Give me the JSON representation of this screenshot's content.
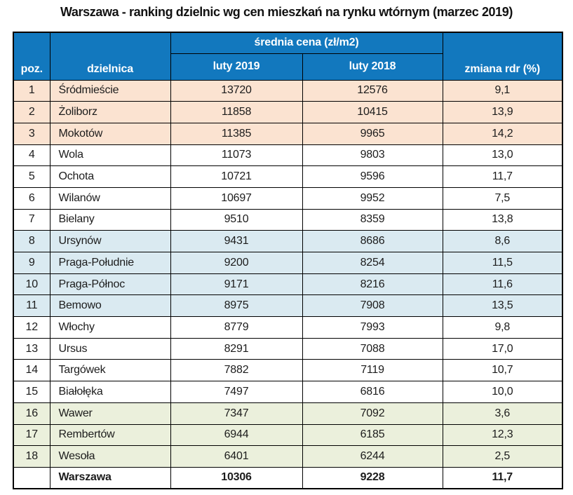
{
  "page": {
    "title": "Warszawa - ranking dzielnic wg cen mieszkań na rynku wtórnym (marzec 2019)"
  },
  "colors": {
    "header_blue": "#1278be",
    "band_peach": "#fbe3d1",
    "band_blue": "#daeaf1",
    "band_green": "#ebf0dc",
    "border_black": "#000000",
    "header_text": "#ffffff",
    "body_text": "#1c1c1c"
  },
  "table": {
    "headers": {
      "poz": "poz.",
      "dzielnica": "dzielnica",
      "group": "średnia cena (zł/m2)",
      "col2019": "luty 2019",
      "col2018": "luty 2018",
      "zmiana": "zmiana rdr (%)"
    },
    "rows": [
      {
        "poz": "1",
        "dzielnica": "Śródmieście",
        "luty2019": "13720",
        "luty2018": "12576",
        "zmiana": "9,1",
        "band": "peach"
      },
      {
        "poz": "2",
        "dzielnica": "Żoliborz",
        "luty2019": "11858",
        "luty2018": "10415",
        "zmiana": "13,9",
        "band": "peach"
      },
      {
        "poz": "3",
        "dzielnica": "Mokotów",
        "luty2019": "11385",
        "luty2018": "9965",
        "zmiana": "14,2",
        "band": "peach"
      },
      {
        "poz": "4",
        "dzielnica": "Wola",
        "luty2019": "11073",
        "luty2018": "9803",
        "zmiana": "13,0",
        "band": "white"
      },
      {
        "poz": "5",
        "dzielnica": "Ochota",
        "luty2019": "10721",
        "luty2018": "9596",
        "zmiana": "11,7",
        "band": "white"
      },
      {
        "poz": "6",
        "dzielnica": "Wilanów",
        "luty2019": "10697",
        "luty2018": "9952",
        "zmiana": "7,5",
        "band": "white"
      },
      {
        "poz": "7",
        "dzielnica": "Bielany",
        "luty2019": "9510",
        "luty2018": "8359",
        "zmiana": "13,8",
        "band": "white"
      },
      {
        "poz": "8",
        "dzielnica": "Ursynów",
        "luty2019": "9431",
        "luty2018": "8686",
        "zmiana": "8,6",
        "band": "blue"
      },
      {
        "poz": "9",
        "dzielnica": "Praga-Południe",
        "luty2019": "9200",
        "luty2018": "8254",
        "zmiana": "11,5",
        "band": "blue"
      },
      {
        "poz": "10",
        "dzielnica": "Praga-Północ",
        "luty2019": "9171",
        "luty2018": "8216",
        "zmiana": "11,6",
        "band": "blue"
      },
      {
        "poz": "11",
        "dzielnica": "Bemowo",
        "luty2019": "8975",
        "luty2018": "7908",
        "zmiana": "13,5",
        "band": "blue"
      },
      {
        "poz": "12",
        "dzielnica": "Włochy",
        "luty2019": "8779",
        "luty2018": "7993",
        "zmiana": "9,8",
        "band": "white"
      },
      {
        "poz": "13",
        "dzielnica": "Ursus",
        "luty2019": "8291",
        "luty2018": "7088",
        "zmiana": "17,0",
        "band": "white"
      },
      {
        "poz": "14",
        "dzielnica": "Targówek",
        "luty2019": "7882",
        "luty2018": "7119",
        "zmiana": "10,7",
        "band": "white"
      },
      {
        "poz": "15",
        "dzielnica": "Białołęka",
        "luty2019": "7497",
        "luty2018": "6816",
        "zmiana": "10,0",
        "band": "white"
      },
      {
        "poz": "16",
        "dzielnica": "Wawer",
        "luty2019": "7347",
        "luty2018": "7092",
        "zmiana": "3,6",
        "band": "green"
      },
      {
        "poz": "17",
        "dzielnica": "Rembertów",
        "luty2019": "6944",
        "luty2018": "6185",
        "zmiana": "12,3",
        "band": "green"
      },
      {
        "poz": "18",
        "dzielnica": "Wesoła",
        "luty2019": "6401",
        "luty2018": "6244",
        "zmiana": "2,5",
        "band": "green"
      },
      {
        "poz": "",
        "dzielnica": "Warszawa",
        "luty2019": "10306",
        "luty2018": "9228",
        "zmiana": "11,7",
        "band": "total"
      }
    ]
  },
  "chart_data": {
    "type": "table",
    "title": "Warszawa - ranking dzielnic wg cen mieszkań na rynku wtórnym (marzec 2019)",
    "columns": [
      "poz.",
      "dzielnica",
      "luty 2019",
      "luty 2018",
      "zmiana rdr (%)"
    ],
    "column_group": {
      "label": "średnia cena (zł/m2)",
      "covers": [
        "luty 2019",
        "luty 2018"
      ]
    },
    "rows": [
      [
        1,
        "Śródmieście",
        13720,
        12576,
        9.1
      ],
      [
        2,
        "Żoliborz",
        11858,
        10415,
        13.9
      ],
      [
        3,
        "Mokotów",
        11385,
        9965,
        14.2
      ],
      [
        4,
        "Wola",
        11073,
        9803,
        13.0
      ],
      [
        5,
        "Ochota",
        10721,
        9596,
        11.7
      ],
      [
        6,
        "Wilanów",
        10697,
        9952,
        7.5
      ],
      [
        7,
        "Bielany",
        9510,
        8359,
        13.8
      ],
      [
        8,
        "Ursynów",
        9431,
        8686,
        8.6
      ],
      [
        9,
        "Praga-Południe",
        9200,
        8254,
        11.5
      ],
      [
        10,
        "Praga-Północ",
        9171,
        8216,
        11.6
      ],
      [
        11,
        "Bemowo",
        8975,
        7908,
        13.5
      ],
      [
        12,
        "Włochy",
        8779,
        7993,
        9.8
      ],
      [
        13,
        "Ursus",
        8291,
        7088,
        17.0
      ],
      [
        14,
        "Targówek",
        7882,
        7119,
        10.7
      ],
      [
        15,
        "Białołęka",
        7497,
        6816,
        10.0
      ],
      [
        16,
        "Wawer",
        7347,
        7092,
        3.6
      ],
      [
        17,
        "Rembertów",
        6944,
        6185,
        12.3
      ],
      [
        18,
        "Wesoła",
        6401,
        6244,
        2.5
      ]
    ],
    "summary_row": [
      "",
      "Warszawa",
      10306,
      9228,
      11.7
    ]
  }
}
